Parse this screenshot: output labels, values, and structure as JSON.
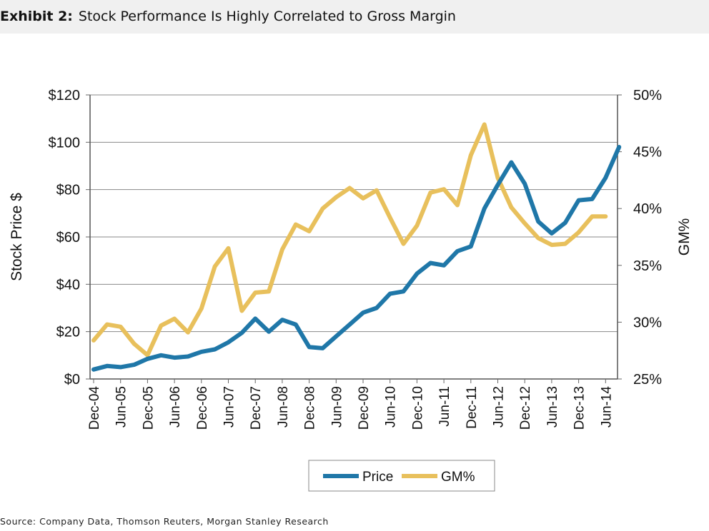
{
  "header": {
    "label": "Exhibit 2:",
    "title": "Stock Performance Is Highly Correlated to Gross Margin"
  },
  "source": "Source: Company Data, Thomson Reuters, Morgan Stanley Research",
  "chart_data": {
    "type": "line",
    "ylabel": "Stock Price $",
    "y2label": "GM%",
    "ylim": [
      0,
      120
    ],
    "y2lim": [
      25,
      50
    ],
    "yticks": [
      "$0",
      "$20",
      "$40",
      "$60",
      "$80",
      "$100",
      "$120"
    ],
    "y2ticks": [
      "25%",
      "30%",
      "35%",
      "40%",
      "45%",
      "50%"
    ],
    "xtick_labels": [
      "Dec-04",
      "Jun-05",
      "Dec-05",
      "Jun-06",
      "Dec-06",
      "Jun-07",
      "Dec-07",
      "Jun-08",
      "Dec-08",
      "Jun-09",
      "Dec-09",
      "Jun-10",
      "Dec-10",
      "Jun-11",
      "Dec-11",
      "Jun-12",
      "Dec-12",
      "Jun-13",
      "Dec-13",
      "Jun-14"
    ],
    "x": [
      "Dec-04",
      "Mar-05",
      "Jun-05",
      "Sep-05",
      "Dec-05",
      "Mar-06",
      "Jun-06",
      "Sep-06",
      "Dec-06",
      "Mar-07",
      "Jun-07",
      "Sep-07",
      "Dec-07",
      "Mar-08",
      "Jun-08",
      "Sep-08",
      "Dec-08",
      "Mar-09",
      "Jun-09",
      "Sep-09",
      "Dec-09",
      "Mar-10",
      "Jun-10",
      "Sep-10",
      "Dec-10",
      "Mar-11",
      "Jun-11",
      "Sep-11",
      "Dec-11",
      "Mar-12",
      "Jun-12",
      "Sep-12",
      "Dec-12",
      "Mar-13",
      "Jun-13",
      "Sep-13",
      "Dec-13",
      "Mar-14",
      "Jun-14",
      "Sep-14"
    ],
    "grid": true,
    "legend_placement": "bottom",
    "series": [
      {
        "name": "Price",
        "axis": "left",
        "color": "#1f77a8",
        "values": [
          4,
          5.5,
          5,
          6,
          8.5,
          10,
          9,
          9.5,
          11.5,
          12.5,
          15.5,
          19.5,
          25.5,
          20,
          25,
          23,
          13.5,
          13,
          18,
          23,
          28,
          30,
          36,
          37,
          44.5,
          49,
          48,
          54,
          56,
          72,
          82,
          91.5,
          82.5,
          66.5,
          61.5,
          66,
          75.5,
          76,
          85,
          98
        ]
      },
      {
        "name": "GM%",
        "axis": "right",
        "color": "#e8c05c",
        "values": [
          28.4,
          29.8,
          29.6,
          28.1,
          27.1,
          29.7,
          30.3,
          29.1,
          31.2,
          34.9,
          36.5,
          31,
          32.6,
          32.7,
          36.4,
          38.6,
          38,
          40,
          41,
          41.8,
          40.9,
          41.6,
          39.2,
          36.9,
          38.5,
          41.4,
          41.7,
          40.3,
          44.7,
          47.4,
          42.7,
          40.1,
          38.7,
          37.4,
          36.8,
          36.9,
          37.9,
          39.3,
          39.3,
          null
        ]
      }
    ]
  }
}
